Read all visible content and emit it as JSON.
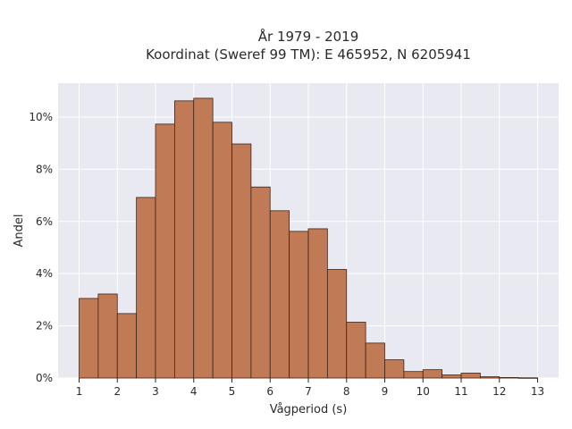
{
  "chart_data": {
    "type": "bar",
    "title": "År 1979 - 2019",
    "subtitle": "Koordinat (Sweref 99 TM): E 465952, N 6205941",
    "xlabel": "Vågperiod (s)",
    "ylabel": "Andel",
    "bin_width": 0.5,
    "bin_starts": [
      1,
      1.5,
      2,
      2.5,
      3,
      3.5,
      4,
      4.5,
      5,
      5.5,
      6,
      6.5,
      7,
      7.5,
      8,
      8.5,
      9,
      9.5,
      10,
      10.5,
      11,
      11.5,
      12,
      12.5
    ],
    "values": [
      3.05,
      3.22,
      2.47,
      6.92,
      9.73,
      10.62,
      10.72,
      9.8,
      8.97,
      7.32,
      6.41,
      5.62,
      5.72,
      4.16,
      2.14,
      1.34,
      0.7,
      0.25,
      0.32,
      0.12,
      0.19,
      0.05,
      0.02,
      0.01
    ],
    "xlim": [
      0.45,
      13.55
    ],
    "ylim": [
      0,
      11.3
    ],
    "xticks": [
      1,
      2,
      3,
      4,
      5,
      6,
      7,
      8,
      9,
      10,
      11,
      12,
      13
    ],
    "yticks": [
      0,
      2,
      4,
      6,
      8,
      10
    ],
    "ytick_labels": [
      "0%",
      "2%",
      "4%",
      "6%",
      "8%",
      "10%"
    ],
    "grid": true,
    "colors": {
      "bar": "#c07a55",
      "edge": "#3d2416",
      "plot_bg": "#e9e9f2",
      "grid": "#ffffff"
    }
  }
}
